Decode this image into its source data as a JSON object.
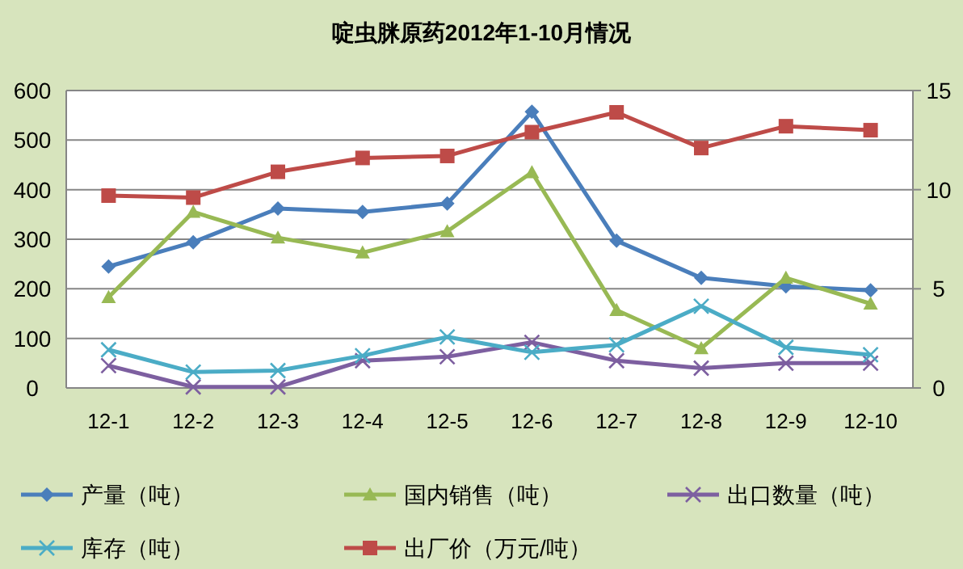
{
  "chart_data": {
    "type": "line",
    "title": "啶虫脒原药2012年1-10月情况",
    "categories": [
      "12-1",
      "12-2",
      "12-3",
      "12-4",
      "12-5",
      "12-6",
      "12-7",
      "12-8",
      "12-9",
      "12-10"
    ],
    "series": [
      {
        "name": "产量（吨）",
        "color": "#4a7ebb",
        "marker": "diamond",
        "values": [
          245,
          294,
          362,
          355,
          372,
          557,
          297,
          222,
          205,
          197
        ]
      },
      {
        "name": "国内销售（吨）",
        "color": "#98b954",
        "marker": "triangle",
        "values": [
          183,
          355,
          303,
          273,
          316,
          435,
          157,
          80,
          222,
          170
        ]
      },
      {
        "name": "出口数量（吨）",
        "color": "#7d5fa0",
        "marker": "cross",
        "values": [
          45,
          2,
          2,
          55,
          63,
          92,
          55,
          40,
          50,
          50
        ]
      },
      {
        "name": "库存（吨）",
        "color": "#4bacc6",
        "marker": "cross",
        "values": [
          77,
          32,
          35,
          65,
          103,
          72,
          87,
          165,
          82,
          67
        ]
      },
      {
        "name": "出厂价（万元/吨）",
        "color": "#be4b48",
        "marker": "square",
        "axis": "y2",
        "values": [
          9.7,
          9.6,
          10.9,
          11.6,
          11.7,
          12.9,
          13.9,
          12.1,
          13.2,
          13.0
        ]
      }
    ],
    "ylim": [
      0,
      600
    ],
    "yticks": [
      0,
      100,
      200,
      300,
      400,
      500,
      600
    ],
    "y2lim": [
      0,
      15
    ],
    "y2ticks": [
      0,
      5,
      10,
      15
    ],
    "grid": "y",
    "legend": "bottom"
  }
}
